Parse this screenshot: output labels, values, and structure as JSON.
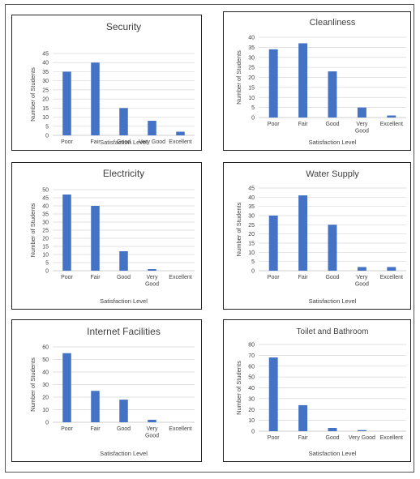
{
  "colors": {
    "bar": "#4472C4",
    "grid": "#d9d9d9",
    "text": "#404040"
  },
  "chart_data": [
    {
      "type": "bar",
      "title": "Security",
      "categories": [
        "Poor",
        "Fair",
        "Good",
        "Very Good",
        "Excellent"
      ],
      "values": [
        35,
        40,
        15,
        8,
        2
      ],
      "xlabel": "Satisfaction Level",
      "ylabel": "Number of Students",
      "ylim": [
        0,
        45
      ],
      "ytick_step": 5,
      "grid": true
    },
    {
      "type": "bar",
      "title": "Cleanliness",
      "categories": [
        "Poor",
        "Fair",
        "Good",
        "Very Good",
        "Excellent"
      ],
      "values": [
        34,
        37,
        23,
        5,
        1
      ],
      "xlabel": "Satisfaction Level",
      "ylabel": "Number of Students",
      "ylim": [
        0,
        40
      ],
      "ytick_step": 5,
      "grid": true
    },
    {
      "type": "bar",
      "title": "Electricity",
      "categories": [
        "Poor",
        "Fair",
        "Good",
        "Very Good",
        "Excellent"
      ],
      "values": [
        47,
        40,
        12,
        1,
        0
      ],
      "xlabel": "Satisfaction Level",
      "ylabel": "Number of Students",
      "ylim": [
        0,
        50
      ],
      "ytick_step": 5,
      "grid": true
    },
    {
      "type": "bar",
      "title": "Water Supply",
      "categories": [
        "Poor",
        "Fair",
        "Good",
        "Very Good",
        "Excellent"
      ],
      "values": [
        30,
        41,
        25,
        2,
        2
      ],
      "xlabel": "Satisfaction Level",
      "ylabel": "Number of Students",
      "ylim": [
        0,
        45
      ],
      "ytick_step": 5,
      "grid": true
    },
    {
      "type": "bar",
      "title": "Internet Facilities",
      "categories": [
        "Poor",
        "Fair",
        "Good",
        "Very Good",
        "Excellent"
      ],
      "values": [
        55,
        25,
        18,
        2,
        0
      ],
      "xlabel": "Satisfaction Level",
      "ylabel": "Number of Students",
      "ylim": [
        0,
        60
      ],
      "ytick_step": 10,
      "grid": true
    },
    {
      "type": "bar",
      "title": "Toilet and Bathroom",
      "categories": [
        "Poor",
        "Fair",
        "Good",
        "Very Good",
        "Excellent"
      ],
      "values": [
        68,
        24,
        3,
        1,
        0
      ],
      "xlabel": "Satisfaction Level",
      "ylabel": "Number of Students",
      "ylim": [
        0,
        80
      ],
      "ytick_step": 10,
      "grid": true
    }
  ]
}
